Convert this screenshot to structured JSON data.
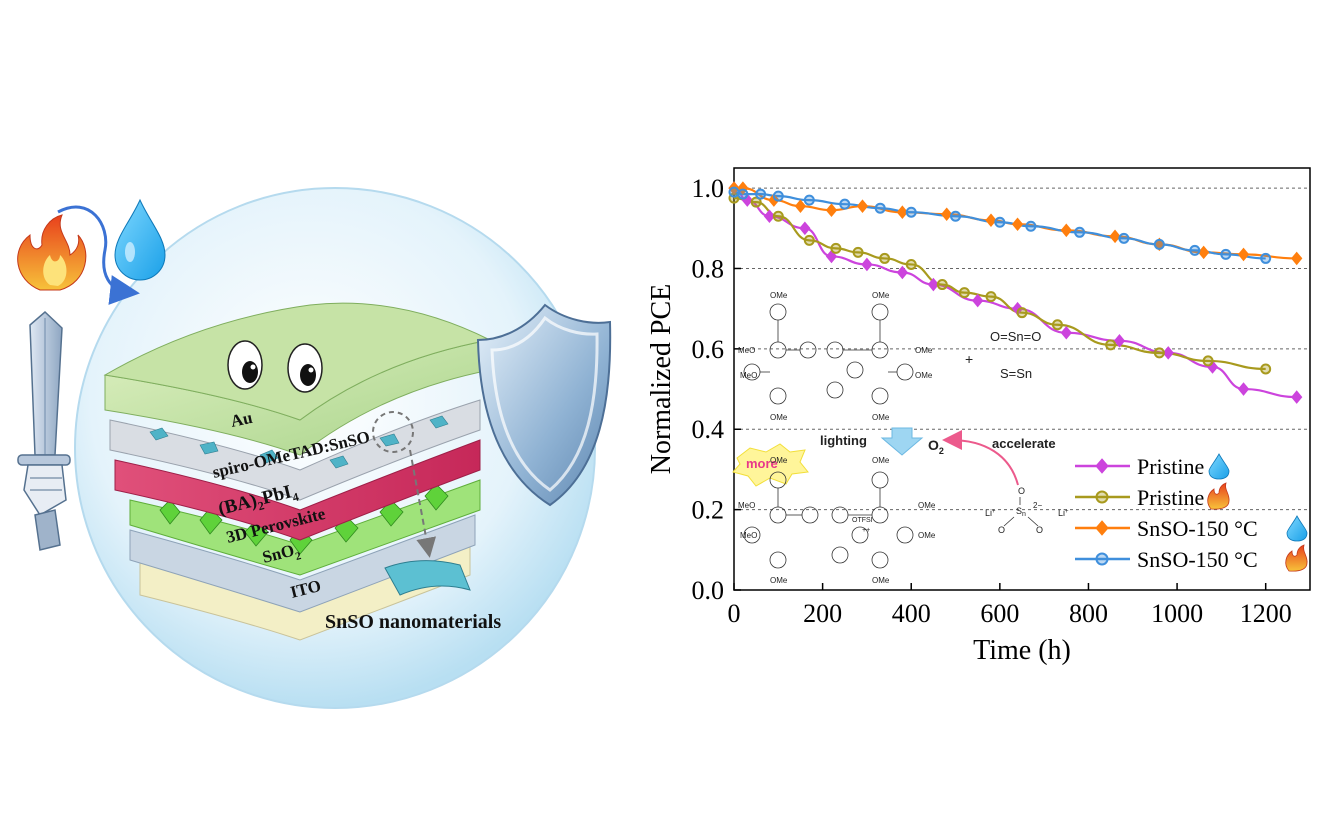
{
  "illustration": {
    "layers": {
      "au": "Au",
      "spiro": "spiro-OMeTAD:SnSO",
      "ba_prefix": "(BA)",
      "ba_sub": "2",
      "ba_suffix": "PbI",
      "ba_sub2": "4",
      "perovskite": "3D Perovskite",
      "sno2_main": "SnO",
      "sno2_sub": "2",
      "ito": "ITO"
    },
    "nanomaterial_label": "SnSO nanomaterials",
    "icons": [
      "flame-icon",
      "water-drop-icon",
      "sword-icon",
      "shield-icon",
      "eyes-icon"
    ]
  },
  "chemistry": {
    "ome": "OMe",
    "meo": "MeO",
    "plus": "+",
    "sno2_formula": "O=Sn=O",
    "sns_formula": "S=Sn",
    "lighting": "lighting",
    "o2_main": "O",
    "o2_sub": "2",
    "accelerate": "accelerate",
    "more": "more",
    "otfsi": "OTFSI",
    "charge": "++",
    "li": "Li",
    "li_charge": "+",
    "sulfate_s": "S",
    "sulfate_o": "O",
    "sulfate_charge": "2−",
    "sulfate_n": "n"
  },
  "chart_data": {
    "type": "line",
    "xlabel": "Time (h)",
    "ylabel": "Normalized PCE",
    "xlim": [
      0,
      1300
    ],
    "ylim": [
      0.0,
      1.05
    ],
    "xticks": [
      0,
      200,
      400,
      600,
      800,
      1000,
      1200
    ],
    "yticks": [
      0.0,
      0.2,
      0.4,
      0.6,
      0.8,
      1.0
    ],
    "ytick_labels": [
      "0.0",
      "0.2",
      "0.4",
      "0.6",
      "0.8",
      "1.0"
    ],
    "gridlines_y": [
      0.2,
      0.4,
      0.6,
      0.8,
      1.0
    ],
    "legend_position": "lower-right",
    "series": [
      {
        "name": "Pristine",
        "legend_icon": "water-drop-icon",
        "color": "#cc44dd",
        "marker": "diamond",
        "x": [
          0,
          30,
          80,
          160,
          220,
          300,
          380,
          450,
          550,
          640,
          750,
          870,
          980,
          1080,
          1150,
          1270
        ],
        "y": [
          1.0,
          0.97,
          0.93,
          0.9,
          0.83,
          0.81,
          0.79,
          0.76,
          0.72,
          0.7,
          0.64,
          0.62,
          0.59,
          0.555,
          0.5,
          0.48
        ]
      },
      {
        "name": "Pristine",
        "legend_icon": "flame-icon",
        "color": "#a89a1e",
        "marker": "circle",
        "x": [
          0,
          50,
          100,
          170,
          230,
          280,
          340,
          400,
          470,
          520,
          580,
          650,
          730,
          850,
          960,
          1070,
          1200
        ],
        "y": [
          0.975,
          0.965,
          0.93,
          0.87,
          0.85,
          0.84,
          0.825,
          0.81,
          0.76,
          0.74,
          0.73,
          0.69,
          0.66,
          0.61,
          0.59,
          0.57,
          0.55
        ]
      },
      {
        "name": "SnSO-150 °C",
        "legend_icon": "water-drop-icon",
        "color": "#ff7f0e",
        "marker": "diamond",
        "x": [
          0,
          20,
          90,
          150,
          220,
          290,
          380,
          480,
          580,
          640,
          750,
          860,
          960,
          1060,
          1150,
          1270
        ],
        "y": [
          1.0,
          1.0,
          0.97,
          0.955,
          0.945,
          0.955,
          0.94,
          0.935,
          0.92,
          0.91,
          0.895,
          0.88,
          0.86,
          0.84,
          0.835,
          0.825
        ]
      },
      {
        "name": "SnSO-150 °C",
        "legend_icon": "flame-icon",
        "color": "#3f8fdc",
        "marker": "circle",
        "x": [
          0,
          20,
          60,
          100,
          170,
          250,
          330,
          400,
          500,
          600,
          670,
          780,
          880,
          960,
          1040,
          1110,
          1200
        ],
        "y": [
          0.99,
          0.985,
          0.985,
          0.98,
          0.97,
          0.96,
          0.95,
          0.94,
          0.93,
          0.915,
          0.905,
          0.89,
          0.875,
          0.86,
          0.845,
          0.835,
          0.825
        ]
      }
    ]
  }
}
